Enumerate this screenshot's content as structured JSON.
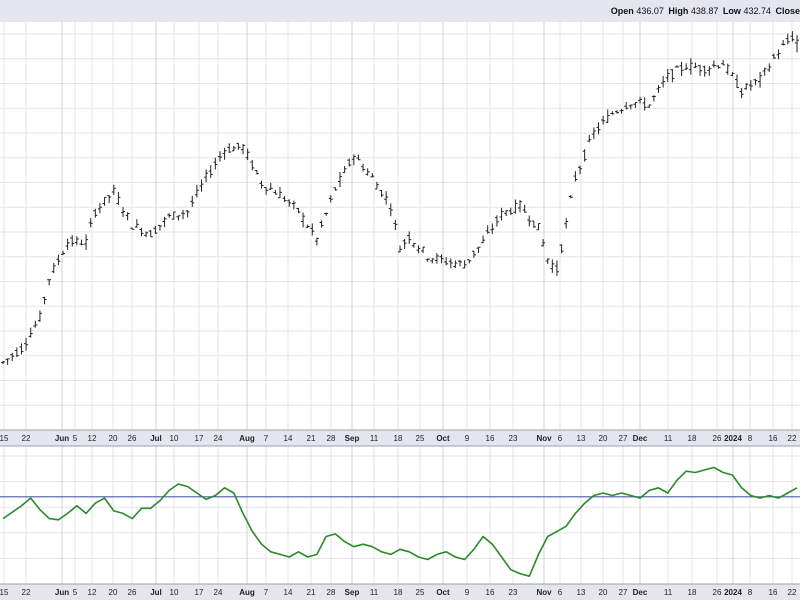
{
  "header": {
    "open_label": "Open",
    "open_value": "436.07",
    "high_label": "High",
    "high_value": "438.87",
    "low_label": "Low",
    "low_value": "432.74",
    "close_label": "Close"
  },
  "colors": {
    "price_bar": "#222222",
    "indicator_line": "#2a8a2a",
    "reference_line": "#4a5aa6",
    "grid": "#e4e6ec",
    "month_grid": "#d0d3da"
  },
  "chart_data": [
    {
      "type": "ohlc",
      "x_unit": "index of trading-day bar from left",
      "xlim": [
        0,
        172
      ],
      "ylim": [
        300,
        440
      ],
      "x_tick_labels": [
        "15",
        "22",
        "Jun",
        "5",
        "12",
        "20",
        "26",
        "Jul",
        "10",
        "17",
        "24",
        "Aug",
        "7",
        "14",
        "21",
        "28",
        "Sep",
        "11",
        "18",
        "25",
        "Oct",
        "9",
        "16",
        "23",
        "Nov",
        "6",
        "13",
        "20",
        "27",
        "Dec",
        "11",
        "18",
        "26",
        "2024",
        "8",
        "16",
        "22"
      ],
      "month_labels": [
        "Jun",
        "Jul",
        "Aug",
        "Sep",
        "Oct",
        "Nov",
        "Dec",
        "2024"
      ],
      "trend": [
        [
          0,
          322
        ],
        [
          4,
          327
        ],
        [
          8,
          338
        ],
        [
          10,
          352
        ],
        [
          14,
          365
        ],
        [
          18,
          365
        ],
        [
          20,
          376
        ],
        [
          24,
          383
        ],
        [
          28,
          371
        ],
        [
          32,
          368
        ],
        [
          36,
          374
        ],
        [
          40,
          376
        ],
        [
          44,
          388
        ],
        [
          48,
          398
        ],
        [
          52,
          399
        ],
        [
          56,
          386
        ],
        [
          60,
          382
        ],
        [
          64,
          376
        ],
        [
          68,
          366
        ],
        [
          72,
          384
        ],
        [
          76,
          396
        ],
        [
          80,
          388
        ],
        [
          84,
          378
        ],
        [
          86,
          363
        ],
        [
          88,
          367
        ],
        [
          92,
          360
        ],
        [
          96,
          358
        ],
        [
          100,
          357
        ],
        [
          104,
          365
        ],
        [
          108,
          375
        ],
        [
          112,
          378
        ],
        [
          116,
          370
        ],
        [
          118,
          359
        ],
        [
          120,
          355
        ],
        [
          124,
          388
        ],
        [
          128,
          404
        ],
        [
          132,
          411
        ],
        [
          136,
          415
        ],
        [
          140,
          414
        ],
        [
          144,
          424
        ],
        [
          148,
          428
        ],
        [
          152,
          427
        ],
        [
          156,
          429
        ],
        [
          160,
          419
        ],
        [
          164,
          423
        ],
        [
          168,
          433
        ],
        [
          172,
          440
        ]
      ],
      "last_bar": {
        "open": 436.07,
        "high": 438.87,
        "low": 432.74
      }
    },
    {
      "type": "line",
      "x_unit": "index of trading-day bar from left",
      "xlim": [
        0,
        172
      ],
      "ylim": [
        0,
        100
      ],
      "reference_y": 65,
      "values_approx": [
        [
          0,
          48
        ],
        [
          4,
          58
        ],
        [
          6,
          64
        ],
        [
          8,
          55
        ],
        [
          10,
          48
        ],
        [
          12,
          47
        ],
        [
          14,
          52
        ],
        [
          16,
          58
        ],
        [
          18,
          52
        ],
        [
          20,
          60
        ],
        [
          22,
          64
        ],
        [
          24,
          54
        ],
        [
          26,
          52
        ],
        [
          28,
          48
        ],
        [
          30,
          56
        ],
        [
          32,
          56
        ],
        [
          34,
          62
        ],
        [
          36,
          70
        ],
        [
          38,
          75
        ],
        [
          40,
          73
        ],
        [
          42,
          68
        ],
        [
          44,
          63
        ],
        [
          46,
          66
        ],
        [
          48,
          72
        ],
        [
          50,
          68
        ],
        [
          52,
          52
        ],
        [
          54,
          38
        ],
        [
          56,
          28
        ],
        [
          58,
          22
        ],
        [
          60,
          20
        ],
        [
          62,
          18
        ],
        [
          64,
          22
        ],
        [
          66,
          18
        ],
        [
          68,
          20
        ],
        [
          70,
          34
        ],
        [
          72,
          36
        ],
        [
          74,
          30
        ],
        [
          76,
          26
        ],
        [
          78,
          28
        ],
        [
          80,
          26
        ],
        [
          82,
          22
        ],
        [
          84,
          20
        ],
        [
          86,
          24
        ],
        [
          88,
          22
        ],
        [
          90,
          18
        ],
        [
          92,
          16
        ],
        [
          94,
          20
        ],
        [
          96,
          22
        ],
        [
          98,
          18
        ],
        [
          100,
          16
        ],
        [
          102,
          24
        ],
        [
          104,
          34
        ],
        [
          106,
          28
        ],
        [
          108,
          18
        ],
        [
          110,
          8
        ],
        [
          112,
          5
        ],
        [
          114,
          3
        ],
        [
          116,
          20
        ],
        [
          118,
          34
        ],
        [
          120,
          38
        ],
        [
          122,
          42
        ],
        [
          124,
          52
        ],
        [
          126,
          60
        ],
        [
          128,
          66
        ],
        [
          130,
          68
        ],
        [
          132,
          66
        ],
        [
          134,
          68
        ],
        [
          136,
          66
        ],
        [
          138,
          64
        ],
        [
          140,
          70
        ],
        [
          142,
          72
        ],
        [
          144,
          68
        ],
        [
          146,
          78
        ],
        [
          148,
          85
        ],
        [
          150,
          84
        ],
        [
          152,
          86
        ],
        [
          154,
          88
        ],
        [
          156,
          84
        ],
        [
          158,
          82
        ],
        [
          160,
          72
        ],
        [
          162,
          66
        ],
        [
          164,
          64
        ],
        [
          166,
          66
        ],
        [
          168,
          64
        ],
        [
          170,
          68
        ],
        [
          172,
          72
        ]
      ]
    }
  ]
}
